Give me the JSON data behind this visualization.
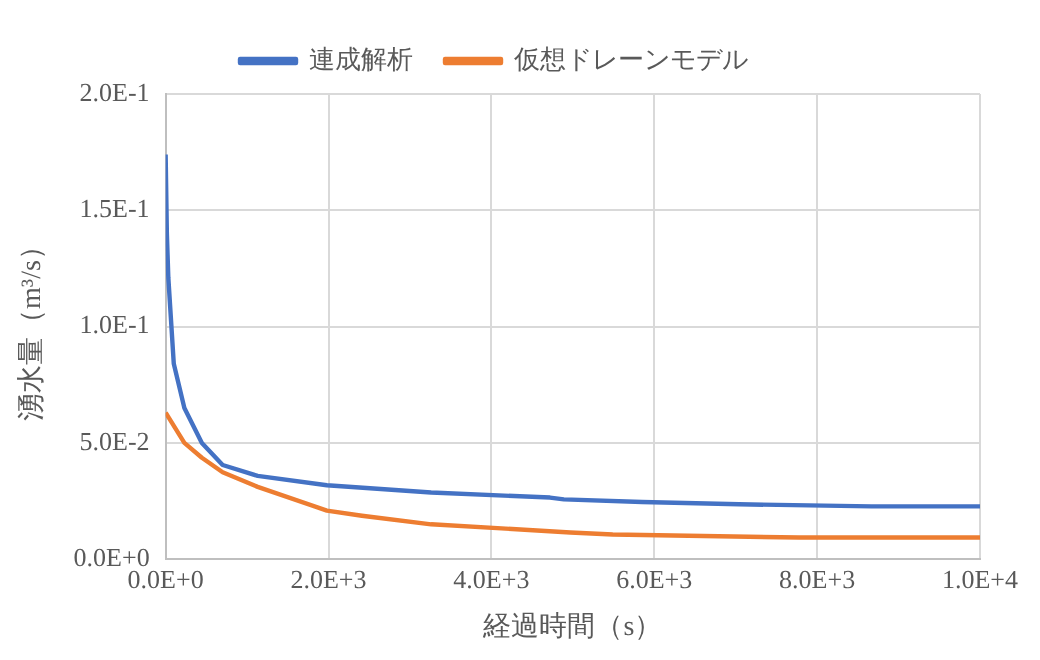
{
  "chart_data": {
    "type": "line",
    "xlabel": "経過時間（s）",
    "ylabel": "湧水量（m³/s）",
    "xlim": [
      0,
      10000
    ],
    "xticks": [
      {
        "value": 0,
        "label": "0.0E+0"
      },
      {
        "value": 2000,
        "label": "2.0E+3"
      },
      {
        "value": 4000,
        "label": "4.0E+3"
      },
      {
        "value": 6000,
        "label": "6.0E+3"
      },
      {
        "value": 8000,
        "label": "8.0E+3"
      },
      {
        "value": 10000,
        "label": "1.0E+4"
      }
    ],
    "ylim": [
      0,
      0.2
    ],
    "yticks": [
      {
        "value": 0,
        "label": "0.0E+0"
      },
      {
        "value": 0.05,
        "label": "5.0E-2"
      },
      {
        "value": 0.1,
        "label": "1.0E-1"
      },
      {
        "value": 0.15,
        "label": "1.5E-1"
      },
      {
        "value": 0.2,
        "label": "2.0E-1"
      }
    ],
    "grid": true,
    "legend": "top",
    "marker": "none",
    "line_style": "solid",
    "series": [
      {
        "name": "連成解析",
        "color": "#4472c4",
        "x": [
          0,
          15,
          33,
          100,
          230,
          445,
          700,
          1130,
          1980,
          3260,
          4720,
          4890,
          5850,
          7040,
          8670,
          10000
        ],
        "values": [
          0.174,
          0.14,
          0.121,
          0.084,
          0.065,
          0.05,
          0.0405,
          0.0358,
          0.0318,
          0.0287,
          0.0265,
          0.0257,
          0.0246,
          0.0236,
          0.0227,
          0.0227
        ]
      },
      {
        "name": "仮想ドレーンモデル",
        "color": "#ed7d31",
        "x": [
          0,
          230,
          445,
          700,
          1130,
          1980,
          2410,
          3260,
          4970,
          5490,
          7780,
          10000
        ],
        "values": [
          0.063,
          0.05,
          0.0436,
          0.0374,
          0.0311,
          0.0209,
          0.0187,
          0.015,
          0.0115,
          0.0106,
          0.0093,
          0.0093
        ]
      }
    ]
  }
}
